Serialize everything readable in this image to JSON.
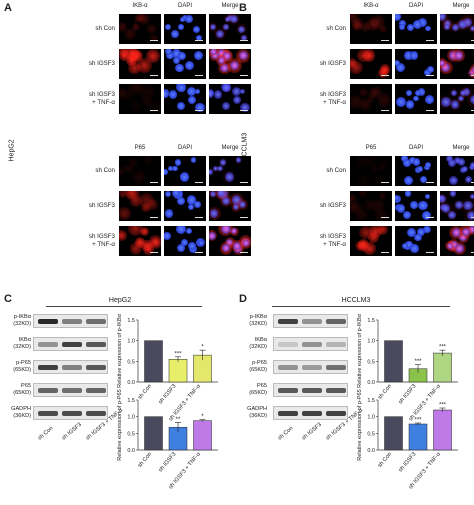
{
  "panels": {
    "A": {
      "letter": "A",
      "cell_line": "HepG2"
    },
    "B": {
      "letter": "B",
      "cell_line": "HCCLM3"
    },
    "C": {
      "letter": "C",
      "cell_line": "HepG2"
    },
    "D": {
      "letter": "D",
      "cell_line": "HCCLM3"
    }
  },
  "if_columns_top": [
    "IKB-α",
    "DAPI",
    "Merge"
  ],
  "if_columns_bottom": [
    "P65",
    "DAPI",
    "Merge"
  ],
  "if_rows": [
    {
      "line1": "sh Con",
      "line2": ""
    },
    {
      "line1": "sh IGSF3",
      "line2": ""
    },
    {
      "line1": "sh IGSF3",
      "line2": "+ TNF-α"
    }
  ],
  "blot_labels_C": [
    {
      "line1": "p-IKBα",
      "line2": "(32KD)"
    },
    {
      "line1": "IKBα",
      "line2": "(32KD)"
    },
    {
      "line1": "p-P65",
      "line2": "(65KD)"
    },
    {
      "line1": "P65",
      "line2": "(65KD)"
    },
    {
      "line1": "GADPH",
      "line2": "(36KD)"
    }
  ],
  "blot_labels_D": [
    {
      "line1": "p-IKBα",
      "line2": "(32KD)"
    },
    {
      "line1": "IKBα",
      "line2": "(32KD)"
    },
    {
      "line1": "p-P65",
      "line2": "(65KD)"
    },
    {
      "line1": "P65",
      "line2": "(65KD)"
    },
    {
      "line1": "GADPH",
      "line2": "(36KD)"
    }
  ],
  "blot_lanes": [
    "sh Con",
    "sh IGSF3",
    "sh IGSF3 + TNF-α"
  ],
  "colors": {
    "shCon": "#4a4a5e",
    "shIGSF3_C": "#e7ee6a",
    "shIGSF3_TNF_C": "#e3e86c",
    "shIGSF3_D": "#8bc34a",
    "shIGSF3_TNF_D": "#aed581",
    "p65_shCon": "#4a4a5e",
    "p65_shIGSF3": "#3f7fe0",
    "p65_TNF": "#c07ae8"
  },
  "chart_data": [
    {
      "type": "bar",
      "panel": "C",
      "categories": [
        "sh Con",
        "sh IGSF3",
        "sh IGSF3 + TNF-α"
      ],
      "values": [
        1.0,
        0.55,
        0.65
      ],
      "errors": [
        0,
        0.06,
        0.12
      ],
      "significance": [
        "",
        "***",
        "*"
      ],
      "ylabel": "Relative expression of p-IKBα",
      "ylim": [
        0,
        1.5
      ],
      "yticks": [
        "0.0",
        "0.5",
        "1.0",
        "1.5"
      ]
    },
    {
      "type": "bar",
      "panel": "C",
      "categories": [
        "sh Con",
        "sh IGSF3",
        "sh IGSF3 + TNF-α"
      ],
      "values": [
        1.0,
        0.68,
        0.88
      ],
      "errors": [
        0,
        0.15,
        0.03
      ],
      "significance": [
        "",
        "**",
        "*"
      ],
      "ylabel": "Relative expression of p-P65",
      "ylim": [
        0,
        1.5
      ],
      "yticks": [
        "0.0",
        "0.5",
        "1.0",
        "1.5"
      ]
    },
    {
      "type": "bar",
      "panel": "D",
      "categories": [
        "sh Con",
        "sh IGSF3",
        "sh IGSF3 + TNF-α"
      ],
      "values": [
        1.0,
        0.32,
        0.7
      ],
      "errors": [
        0,
        0.1,
        0.07
      ],
      "significance": [
        "",
        "***",
        "***"
      ],
      "ylabel": "Relative expression of p-IKBα",
      "ylim": [
        0,
        1.5
      ],
      "yticks": [
        "0.0",
        "0.5",
        "1.0",
        "1.5"
      ]
    },
    {
      "type": "bar",
      "panel": "D",
      "categories": [
        "sh Con",
        "sh IGSF3",
        "sh IGSF3 + TNF-α"
      ],
      "values": [
        1.0,
        0.78,
        1.2
      ],
      "errors": [
        0,
        0.03,
        0.06
      ],
      "significance": [
        "",
        "***",
        "***"
      ],
      "ylabel": "Relative expression of p-P65",
      "ylim": [
        0,
        1.5
      ],
      "yticks": [
        "0.0",
        "0.5",
        "1.0",
        "1.5"
      ]
    }
  ]
}
